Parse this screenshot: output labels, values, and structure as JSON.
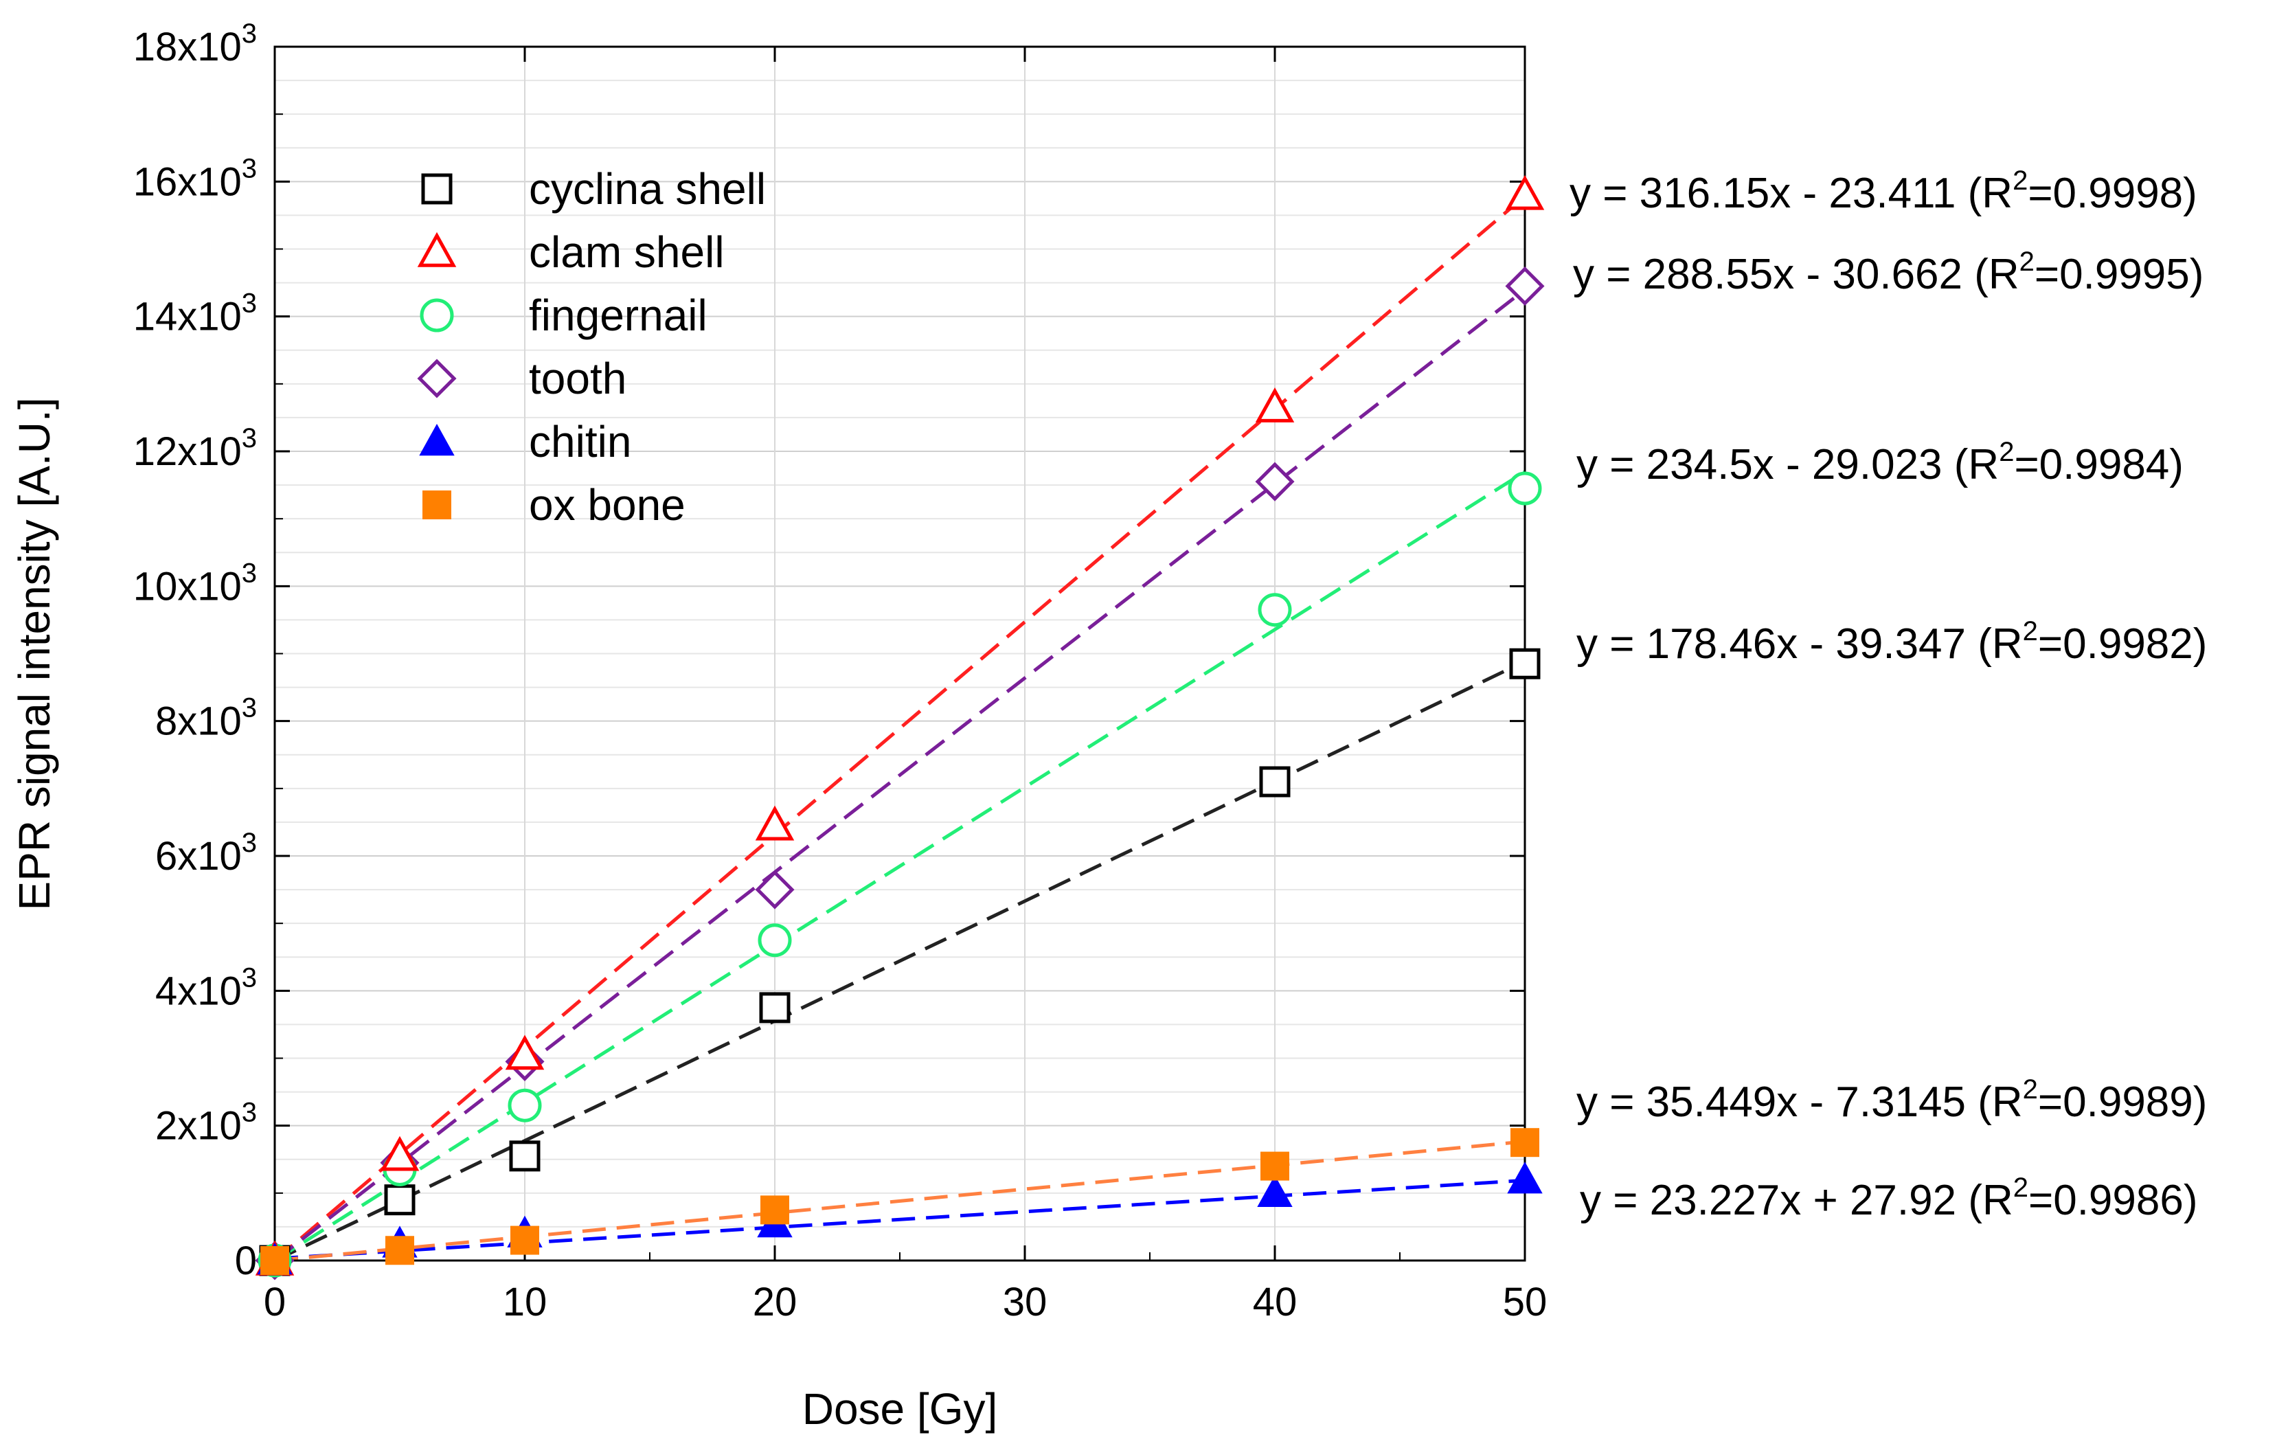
{
  "chart_data": {
    "type": "scatter",
    "title": "",
    "xlabel": "Dose [Gy]",
    "ylabel": "EPR signal intensity [A.U.]",
    "xlim": [
      0,
      50
    ],
    "ylim": [
      0,
      18000
    ],
    "x_ticks": [
      0,
      10,
      20,
      30,
      40,
      50
    ],
    "y_ticks": [
      {
        "value": 0,
        "mantissa": "0",
        "exp": ""
      },
      {
        "value": 2000,
        "mantissa": "2x10",
        "exp": "3"
      },
      {
        "value": 4000,
        "mantissa": "4x10",
        "exp": "3"
      },
      {
        "value": 6000,
        "mantissa": "6x10",
        "exp": "3"
      },
      {
        "value": 8000,
        "mantissa": "8x10",
        "exp": "3"
      },
      {
        "value": 10000,
        "mantissa": "10x10",
        "exp": "3"
      },
      {
        "value": 12000,
        "mantissa": "12x10",
        "exp": "3"
      },
      {
        "value": 14000,
        "mantissa": "14x10",
        "exp": "3"
      },
      {
        "value": 16000,
        "mantissa": "16x10",
        "exp": "3"
      },
      {
        "value": 18000,
        "mantissa": "18x10",
        "exp": "3"
      }
    ],
    "grid": true,
    "legend_position": "top-left",
    "x": [
      0,
      5,
      10,
      20,
      40,
      50
    ],
    "series": [
      {
        "name": "cyclina shell",
        "marker": "square-open",
        "color": "#000000",
        "line_color": "#222222",
        "values": [
          0,
          900,
          1550,
          3750,
          7100,
          8850
        ],
        "fit": {
          "slope": 178.46,
          "intercept": -39.347
        },
        "equation": {
          "main": "y = 178.46x - 39.347 (R",
          "sup": "2",
          "tail": "=0.9982)"
        }
      },
      {
        "name": "clam shell",
        "marker": "triangle-open",
        "color": "#ff0000",
        "line_color": "#ff2020",
        "values": [
          0,
          1550,
          3050,
          6450,
          12650,
          15800
        ],
        "fit": {
          "slope": 316.15,
          "intercept": -23.411
        },
        "equation": {
          "main": "y = 316.15x - 23.411 (R",
          "sup": "2",
          "tail": "=0.9998)"
        }
      },
      {
        "name": "fingernail",
        "marker": "circle-open",
        "color": "#22ee77",
        "line_color": "#22ee77",
        "values": [
          0,
          1350,
          2300,
          4750,
          9650,
          11450
        ],
        "fit": {
          "slope": 234.5,
          "intercept": -29.023
        },
        "equation": {
          "main": "y = 234.5x - 29.023 (R",
          "sup": "2",
          "tail": "=0.9984)"
        }
      },
      {
        "name": "tooth",
        "marker": "diamond-open",
        "color": "#7a1f99",
        "line_color": "#7a1f99",
        "values": [
          0,
          1450,
          2950,
          5500,
          11550,
          14450
        ],
        "fit": {
          "slope": 288.55,
          "intercept": -30.662
        },
        "equation": {
          "main": "y = 288.55x - 30.662 (R",
          "sup": "2",
          "tail": "=0.9995)"
        }
      },
      {
        "name": "chitin",
        "marker": "triangle-filled",
        "color": "#0000ff",
        "line_color": "#0000ff",
        "values": [
          0,
          250,
          400,
          550,
          1000,
          1200
        ],
        "fit": {
          "slope": 23.227,
          "intercept": 27.92
        },
        "equation": {
          "main": "y = 23.227x + 27.92 (R",
          "sup": "2",
          "tail": "=0.9986)"
        }
      },
      {
        "name": "ox bone",
        "marker": "square-filled",
        "color": "#ff8000",
        "line_color": "#ff8040",
        "values": [
          0,
          150,
          300,
          750,
          1400,
          1750
        ],
        "fit": {
          "slope": 35.449,
          "intercept": -7.3145
        },
        "equation": {
          "main": "y = 35.449x - 7.3145 (R",
          "sup": "2",
          "tail": "=0.9989)"
        }
      }
    ]
  }
}
